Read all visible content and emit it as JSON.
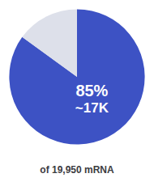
{
  "chart_data": {
    "type": "pie",
    "subtitle": "of 19,950 mRNA",
    "values": [
      85,
      15
    ],
    "colors": [
      "#3d52c4",
      "#dde0ea"
    ],
    "annotations": [
      {
        "text": "85%",
        "color": "#ffffff"
      },
      {
        "text": "~17K",
        "color": "#ffffff"
      }
    ]
  }
}
